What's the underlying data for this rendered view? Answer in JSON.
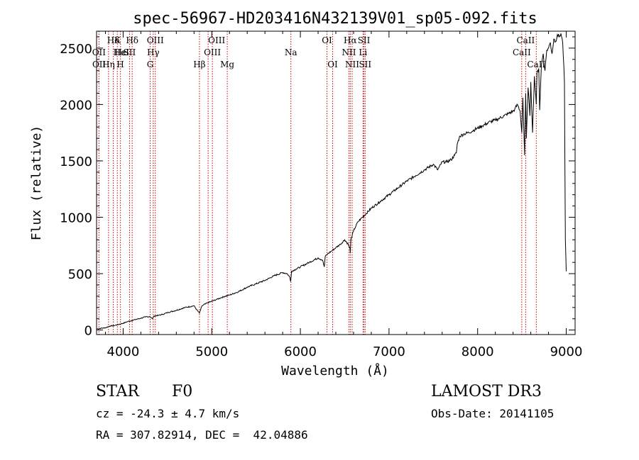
{
  "chart_data": {
    "type": "line",
    "title": "spec-56967-HD203416N432139V01_sp05-092.fits",
    "xlabel": "Wavelength (Å)",
    "ylabel": "Flux (relative)",
    "xlim": [
      3700,
      9100
    ],
    "ylim": [
      -40,
      2650
    ],
    "xticks": [
      4000,
      5000,
      6000,
      7000,
      8000,
      9000
    ],
    "yticks": [
      0,
      500,
      1000,
      1500,
      2000,
      2500
    ],
    "grid": false,
    "series": [
      {
        "name": "flux",
        "x": [
          3700,
          3750,
          3800,
          3850,
          3900,
          3950,
          4000,
          4050,
          4100,
          4150,
          4200,
          4250,
          4300,
          4330,
          4350,
          4400,
          4450,
          4500,
          4600,
          4700,
          4800,
          4830,
          4861,
          4890,
          4950,
          5000,
          5050,
          5100,
          5150,
          5200,
          5300,
          5400,
          5500,
          5600,
          5700,
          5800,
          5850,
          5880,
          5890,
          5900,
          5950,
          6000,
          6100,
          6200,
          6250,
          6270,
          6280,
          6300,
          6350,
          6400,
          6450,
          6500,
          6540,
          6560,
          6563,
          6570,
          6600,
          6650,
          6700,
          6800,
          6900,
          7000,
          7100,
          7200,
          7300,
          7400,
          7500,
          7550,
          7600,
          7650,
          7700,
          7740,
          7760,
          7770,
          7800,
          7850,
          7900,
          7950,
          8000,
          8050,
          8100,
          8150,
          8200,
          8250,
          8300,
          8350,
          8400,
          8420,
          8450,
          8480,
          8498,
          8510,
          8530,
          8542,
          8550,
          8570,
          8590,
          8600,
          8620,
          8640,
          8662,
          8670,
          8690,
          8700,
          8720,
          8740,
          8760,
          8780,
          8800,
          8820,
          8840,
          8860,
          8880,
          8900,
          8920,
          8940,
          8960,
          8980,
          8990,
          9000
        ],
        "y": [
          10,
          15,
          20,
          35,
          40,
          50,
          60,
          75,
          85,
          95,
          105,
          115,
          120,
          100,
          125,
          130,
          140,
          155,
          175,
          200,
          215,
          180,
          150,
          215,
          240,
          255,
          270,
          285,
          300,
          310,
          340,
          380,
          410,
          440,
          480,
          510,
          500,
          470,
          430,
          520,
          540,
          560,
          600,
          640,
          620,
          560,
          650,
          670,
          700,
          730,
          760,
          800,
          760,
          720,
          680,
          800,
          880,
          960,
          1000,
          1080,
          1140,
          1200,
          1260,
          1320,
          1370,
          1420,
          1470,
          1420,
          1490,
          1490,
          1510,
          1550,
          1570,
          1650,
          1720,
          1740,
          1750,
          1770,
          1790,
          1810,
          1830,
          1850,
          1860,
          1880,
          1900,
          1920,
          1940,
          1960,
          2000,
          1940,
          1750,
          2060,
          1550,
          2100,
          1700,
          2150,
          1900,
          2200,
          1750,
          2250,
          2000,
          2280,
          2320,
          1950,
          2350,
          2450,
          2300,
          2480,
          2500,
          2550,
          2450,
          2580,
          2560,
          2620,
          2600,
          2630,
          2550,
          2200,
          800,
          520
        ]
      }
    ],
    "line_markers": [
      {
        "label": "Hδ",
        "wl": 3889,
        "row": 0,
        "align": "center"
      },
      {
        "label": "OII",
        "wl": 3727,
        "row": 1,
        "align": "center"
      },
      {
        "label": "OII",
        "wl": 3729,
        "row": 2,
        "align": "center"
      },
      {
        "label": "Hε",
        "wl": 3970,
        "row": 1,
        "align": "center"
      },
      {
        "label": "Hη",
        "wl": 3835,
        "row": 2,
        "align": "center"
      },
      {
        "label": "K",
        "wl": 3934,
        "row": 0,
        "align": "center"
      },
      {
        "label": "HeI",
        "wl": 3889,
        "row": 1,
        "align": "left"
      },
      {
        "label": "H",
        "wl": 3968,
        "row": 2,
        "align": "center"
      },
      {
        "label": "SII",
        "wl": 4072,
        "row": 1,
        "align": "center"
      },
      {
        "label": "Hδ",
        "wl": 4102,
        "row": 0,
        "align": "center"
      },
      {
        "label": "OIII",
        "wl": 4363,
        "row": 0,
        "align": "center"
      },
      {
        "label": "Hγ",
        "wl": 4340,
        "row": 1,
        "align": "center"
      },
      {
        "label": "G",
        "wl": 4305,
        "row": 2,
        "align": "center"
      },
      {
        "label": "Hβ",
        "wl": 4861,
        "row": 2,
        "align": "center"
      },
      {
        "label": "OIII",
        "wl": 4959,
        "row": 0,
        "align": "left"
      },
      {
        "label": "OIII",
        "wl": 5007,
        "row": 1,
        "align": "center"
      },
      {
        "label": "Mg",
        "wl": 5175,
        "row": 2,
        "align": "center"
      },
      {
        "label": "Na",
        "wl": 5893,
        "row": 1,
        "align": "center"
      },
      {
        "label": "OI",
        "wl": 6300,
        "row": 0,
        "align": "center"
      },
      {
        "label": "OI",
        "wl": 6364,
        "row": 2,
        "align": "center"
      },
      {
        "label": "Hα",
        "wl": 6563,
        "row": 0,
        "align": "center"
      },
      {
        "label": "NII",
        "wl": 6548,
        "row": 1,
        "align": "center"
      },
      {
        "label": "NII",
        "wl": 6584,
        "row": 2,
        "align": "center"
      },
      {
        "label": "SII",
        "wl": 6717,
        "row": 0,
        "align": "center"
      },
      {
        "label": "Li",
        "wl": 6707,
        "row": 1,
        "align": "center"
      },
      {
        "label": "SII",
        "wl": 6731,
        "row": 2,
        "align": "center"
      },
      {
        "label": "CaII",
        "wl": 8542,
        "row": 0,
        "align": "center"
      },
      {
        "label": "CaII",
        "wl": 8498,
        "row": 1,
        "align": "center"
      },
      {
        "label": "CaII",
        "wl": 8662,
        "row": 2,
        "align": "center"
      }
    ],
    "marker_lines_wl": [
      3727,
      3835,
      3889,
      3934,
      3970,
      4072,
      4102,
      4305,
      4340,
      4363,
      4861,
      4959,
      5007,
      5175,
      5893,
      6300,
      6364,
      6548,
      6563,
      6584,
      6707,
      6717,
      6731,
      8498,
      8542,
      8662
    ]
  },
  "info": {
    "object_type": "STAR",
    "subclass": "F0",
    "survey": "LAMOST DR3",
    "cz": "cz = -24.3 ± 4.7 km/s",
    "obs_date": "Obs-Date: 20141105",
    "coords": "RA = 307.82914, DEC =  42.04886"
  },
  "colors": {
    "marker": "#cc0000",
    "line": "#000000"
  }
}
